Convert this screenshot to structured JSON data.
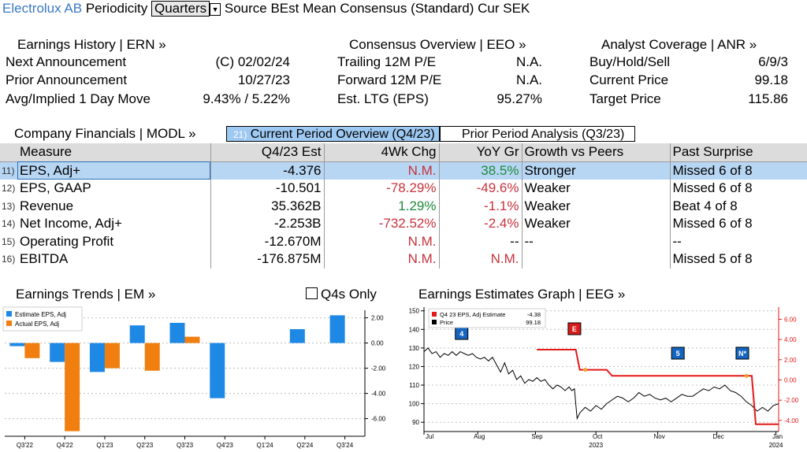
{
  "header": {
    "company": "Electrolux AB",
    "periodicity_label": "Periodicity",
    "periodicity_value": "Quarters",
    "source_text": "Source BEst Mean Consensus (Standard) Cur SEK"
  },
  "earnings_history": {
    "title": "Earnings History | ERN »",
    "rows": [
      {
        "label": "Next Announcement",
        "value": "(C)  02/02/24"
      },
      {
        "label": "Prior Announcement",
        "value": "10/27/23"
      },
      {
        "label": "Avg/Implied 1 Day Move",
        "value": "9.43% / 5.22%"
      }
    ]
  },
  "consensus_overview": {
    "title": "Consensus Overview | EEO »",
    "rows": [
      {
        "label": "Trailing 12M P/E",
        "value": "N.A."
      },
      {
        "label": "Forward 12M P/E",
        "value": "N.A."
      },
      {
        "label": "Est. LTG (EPS)",
        "value": "95.27%"
      }
    ]
  },
  "analyst_coverage": {
    "title": "Analyst Coverage | ANR »",
    "rows": [
      {
        "label": "Buy/Hold/Sell",
        "value": "6/9/3"
      },
      {
        "label": "Current Price",
        "value": "99.18"
      },
      {
        "label": "Target Price",
        "value": "115.86"
      }
    ]
  },
  "financials": {
    "title": "Company Financials | MODL »",
    "tab_current_index": "21)",
    "tab_current": "Current Period Overview (Q4/23)",
    "tab_prior": "Prior Period Analysis (Q3/23)",
    "columns": [
      "Measure",
      "Q4/23 Est",
      "4Wk Chg",
      "YoY Gr",
      "Growth vs Peers",
      "Past Surprise"
    ],
    "rows": [
      {
        "idx": "11)",
        "measure": "EPS, Adj+",
        "est": "-4.376",
        "chg": "N.M.",
        "yoy": "38.5%",
        "peers": "Stronger",
        "surprise": "Missed 6 of 8"
      },
      {
        "idx": "12)",
        "measure": "EPS, GAAP",
        "est": "-10.501",
        "chg": "-78.29%",
        "yoy": "-49.6%",
        "peers": "Weaker",
        "surprise": "Missed 6 of 8"
      },
      {
        "idx": "13)",
        "measure": "Revenue",
        "est": "35.362B",
        "chg": "1.29%",
        "yoy": "-1.1%",
        "peers": "Weaker",
        "surprise": "Beat 4 of 8"
      },
      {
        "idx": "14)",
        "measure": "Net Income, Adj+",
        "est": "-2.253B",
        "chg": "-732.52%",
        "yoy": "-2.4%",
        "peers": "Weaker",
        "surprise": "Missed 6 of 8"
      },
      {
        "idx": "15)",
        "measure": "Operating Profit",
        "est": "-12.670M",
        "chg": "N.M.",
        "yoy": "--",
        "peers": "--",
        "surprise": "--"
      },
      {
        "idx": "16)",
        "measure": "EBITDA",
        "est": "-176.875M",
        "chg": "N.M.",
        "yoy": "N.M.",
        "peers": "",
        "surprise": "Missed 5 of 8"
      }
    ]
  },
  "earnings_trends": {
    "title": "Earnings Trends | EM »",
    "q4s_only_label": "Q4s Only",
    "legend": [
      "Estimate EPS, Adj",
      "Actual EPS, Adj"
    ]
  },
  "earnings_graph": {
    "title": "Earnings Estimates Graph | EEG »",
    "legend_estimate": "Q4 23 EPS, Adj Estimate",
    "legend_estimate_value": "-4.38",
    "legend_price": "Price",
    "legend_price_value": "99.18",
    "markers": [
      "4",
      "E",
      "5",
      "N*"
    ]
  },
  "colors": {
    "estimate": "#1e88e5",
    "actual": "#f07f0f",
    "price": "#000000",
    "estimate_line": "#e61919",
    "link_blue": "#3a78c4",
    "neg_red": "#c8323c",
    "pos_green": "#1e8a3c"
  },
  "chart_data": [
    {
      "type": "bar",
      "categories": [
        "Q3'22",
        "Q4'22",
        "Q1'23",
        "Q2'23",
        "Q3'23",
        "Q4'23",
        "Q1'24",
        "Q2'24",
        "Q3'24"
      ],
      "series": [
        {
          "name": "Estimate EPS, Adj",
          "values": [
            -0.25,
            -1.5,
            -2.3,
            1.4,
            1.6,
            -4.38,
            null,
            1.1,
            2.2
          ]
        },
        {
          "name": "Actual EPS, Adj",
          "values": [
            -1.2,
            -7.0,
            -2.0,
            -2.2,
            0.5,
            null,
            null,
            null,
            null
          ]
        }
      ],
      "ylim": [
        -7.4,
        2.6
      ],
      "yticks": [
        "2.00",
        "0.00",
        "-2.00",
        "-4.00",
        "-6.00"
      ],
      "ytick_values": [
        2,
        0,
        -2,
        -4,
        -6
      ],
      "grid": true
    },
    {
      "type": "line",
      "x_labels": [
        "Jul",
        "Aug",
        "Sep",
        "Oct",
        "Nov",
        "Dec",
        "Jan"
      ],
      "x_year_labels": [
        "2023",
        "2024"
      ],
      "price_ylim": [
        85,
        152
      ],
      "price_yticks": [
        150,
        140,
        130,
        120,
        110,
        100,
        90
      ],
      "estimate_ylim": [
        -5.1,
        7.2
      ],
      "estimate_yticks": [
        "6.00",
        "4.00",
        "2.00",
        "0.00",
        "-2.00",
        "-4.00"
      ],
      "estimate_ytick_values": [
        6,
        4,
        2,
        0,
        -2,
        -4
      ],
      "price_series": [
        [
          0,
          128
        ],
        [
          3,
          130
        ],
        [
          6,
          127
        ],
        [
          9,
          128
        ],
        [
          12,
          125
        ],
        [
          15,
          127
        ],
        [
          18,
          126
        ],
        [
          21,
          128
        ],
        [
          24,
          126
        ],
        [
          27,
          128
        ],
        [
          30,
          127
        ],
        [
          33,
          126
        ],
        [
          36,
          127
        ],
        [
          39,
          125
        ],
        [
          42,
          124
        ],
        [
          45,
          125
        ],
        [
          48,
          123
        ],
        [
          51,
          125
        ],
        [
          54,
          121
        ],
        [
          57,
          117
        ],
        [
          60,
          122
        ],
        [
          63,
          116
        ],
        [
          66,
          118
        ],
        [
          69,
          113
        ],
        [
          72,
          115
        ],
        [
          75,
          111
        ],
        [
          78,
          113
        ],
        [
          81,
          112
        ],
        [
          84,
          114
        ],
        [
          87,
          112
        ],
        [
          90,
          113
        ],
        [
          93,
          110
        ],
        [
          96,
          108
        ],
        [
          99,
          110
        ],
        [
          102,
          109
        ],
        [
          105,
          107
        ],
        [
          108,
          109
        ],
        [
          110,
          107
        ],
        [
          112,
          108
        ],
        [
          114,
          92
        ],
        [
          116,
          95
        ],
        [
          120,
          98
        ],
        [
          124,
          96
        ],
        [
          128,
          99
        ],
        [
          132,
          97
        ],
        [
          136,
          100
        ],
        [
          140,
          102
        ],
        [
          144,
          104
        ],
        [
          148,
          103
        ],
        [
          152,
          101
        ],
        [
          156,
          103
        ],
        [
          160,
          106
        ],
        [
          164,
          104
        ],
        [
          168,
          105
        ],
        [
          172,
          103
        ],
        [
          176,
          102
        ],
        [
          180,
          103
        ],
        [
          184,
          101
        ],
        [
          188,
          103
        ],
        [
          192,
          105
        ],
        [
          196,
          104
        ],
        [
          200,
          104
        ],
        [
          204,
          106
        ],
        [
          208,
          108
        ],
        [
          212,
          107
        ],
        [
          216,
          109
        ],
        [
          220,
          108
        ],
        [
          224,
          110
        ],
        [
          228,
          107
        ],
        [
          232,
          106
        ],
        [
          236,
          104
        ],
        [
          240,
          101
        ],
        [
          244,
          99
        ],
        [
          248,
          96
        ],
        [
          252,
          98
        ],
        [
          256,
          96
        ],
        [
          260,
          99
        ],
        [
          264,
          100
        ]
      ],
      "estimate_series": [
        [
          84,
          3.0
        ],
        [
          113,
          3.0
        ],
        [
          116,
          1.0
        ],
        [
          136,
          1.0
        ],
        [
          140,
          0.4
        ],
        [
          244,
          0.4
        ],
        [
          247,
          -4.38
        ],
        [
          264,
          -4.38
        ]
      ],
      "x_max": 264
    }
  ]
}
